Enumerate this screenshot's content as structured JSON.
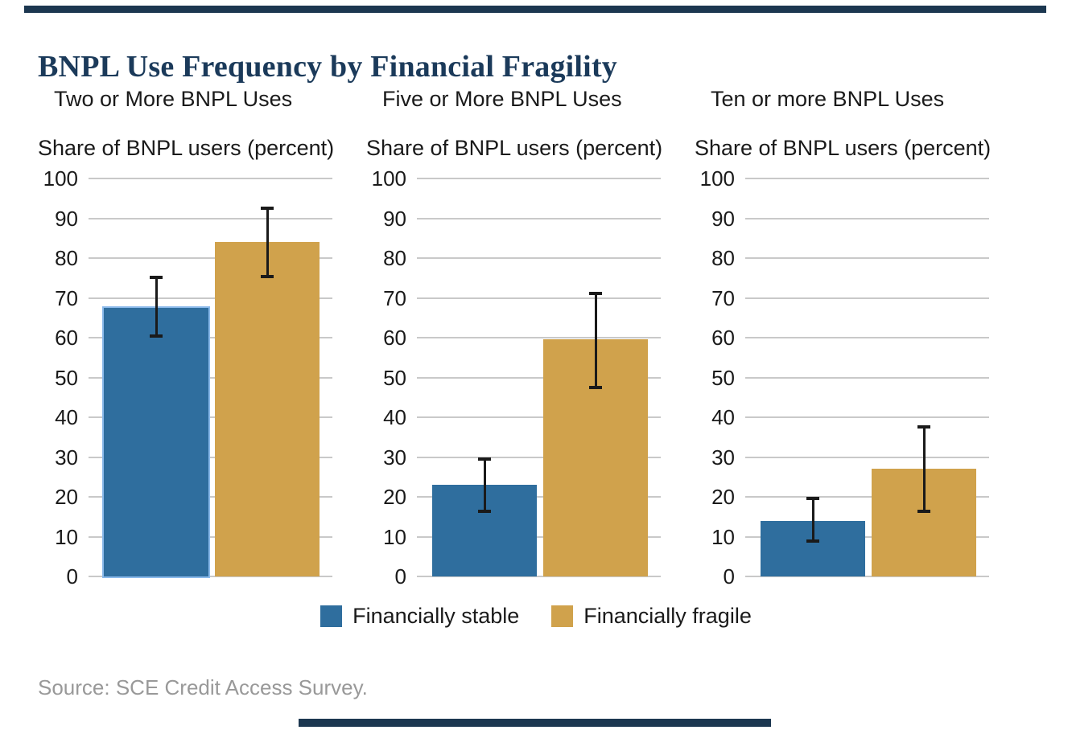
{
  "page": {
    "title": "BNPL Use Frequency by Financial Fragility",
    "source": "Source: SCE Credit Access Survey.",
    "accent_rule_color": "#1C3750",
    "title_color": "#1B3A5A"
  },
  "legend": {
    "position": "bottom-center",
    "items": [
      {
        "label": "Financially stable",
        "color": "#2F6E9E"
      },
      {
        "label": "Financially fragile",
        "color": "#D0A24C"
      }
    ]
  },
  "chart_data": {
    "type": "bar",
    "layout": "three small-multiple panels, grouped vertical bars with confidence-interval error bars",
    "categories": [
      "Financially stable",
      "Financially fragile"
    ],
    "ylabel": "Share of BNPL users (percent)",
    "ylim": [
      0,
      100
    ],
    "yticks": [
      0,
      10,
      20,
      30,
      40,
      50,
      60,
      70,
      80,
      90,
      100
    ],
    "grid": "horizontal gridlines on, light gray",
    "colors": {
      "Financially stable": "#2F6E9E",
      "Financially fragile": "#D0A24C",
      "error_bar": "#1A1A1A",
      "gridline": "#C9C9C9",
      "highlight_outline": "#8AB9EA"
    },
    "panels": [
      {
        "title": "Two or More BNPL Uses",
        "series": [
          {
            "name": "Financially stable",
            "value": 67.5,
            "ci_low": 60,
            "ci_high": 75.5,
            "highlighted": true
          },
          {
            "name": "Financially fragile",
            "value": 84,
            "ci_low": 75,
            "ci_high": 93,
            "highlighted": false
          }
        ]
      },
      {
        "title": "Five or More BNPL Uses",
        "series": [
          {
            "name": "Financially stable",
            "value": 23,
            "ci_low": 16,
            "ci_high": 30,
            "highlighted": false
          },
          {
            "name": "Financially fragile",
            "value": 59.5,
            "ci_low": 47,
            "ci_high": 71.5,
            "highlighted": false
          }
        ]
      },
      {
        "title": "Ten or more BNPL Uses",
        "series": [
          {
            "name": "Financially stable",
            "value": 14,
            "ci_low": 8.5,
            "ci_high": 20,
            "highlighted": false
          },
          {
            "name": "Financially fragile",
            "value": 27,
            "ci_low": 16,
            "ci_high": 38,
            "highlighted": false
          }
        ]
      }
    ]
  }
}
